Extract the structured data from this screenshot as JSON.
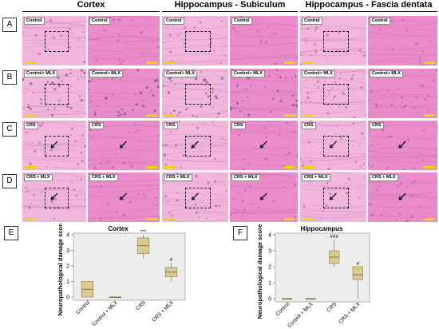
{
  "columns": [
    "Cortex",
    "Hippocampus - Subiculum",
    "Hippocampus - Fascia dentata"
  ],
  "rows": [
    {
      "label": "A",
      "tag": "Control"
    },
    {
      "label": "B",
      "tag": "Control+ MLX"
    },
    {
      "label": "C",
      "tag": "CRS"
    },
    {
      "label": "D",
      "tag": "CRS + MLX"
    }
  ],
  "tissue_colors": {
    "base": "#f2b6dc",
    "mid": "#e98cc9",
    "dark": "#b95aa4",
    "nuclei_blue": "#5a4a9a"
  },
  "chart_data": [
    {
      "panel": "E",
      "type": "box",
      "title": "Cortex",
      "ylabel": "Neuropathological damage score",
      "ylim": [
        0,
        4
      ],
      "yticks": [
        0,
        1,
        2,
        3,
        4
      ],
      "categories": [
        "Control",
        "Control + MLX",
        "CRS",
        "CRS + MLX"
      ],
      "boxes": [
        {
          "min": 0.0,
          "q1": 0.0,
          "median": 0.5,
          "q3": 1.0,
          "max": 1.0
        },
        {
          "min": 0.0,
          "q1": 0.0,
          "median": 0.0,
          "q3": 0.0,
          "max": 0.0
        },
        {
          "min": 2.5,
          "q1": 2.8,
          "median": 3.3,
          "q3": 3.8,
          "max": 4.0
        },
        {
          "min": 1.0,
          "q1": 1.3,
          "median": 1.6,
          "q3": 1.9,
          "max": 2.2
        }
      ],
      "annotations": [
        "",
        "",
        "***",
        "#"
      ],
      "box_color": "#d9cb93"
    },
    {
      "panel": "F",
      "type": "box",
      "title": "Hippocampus",
      "ylabel": "Neuropathological damage score",
      "ylim": [
        0,
        4
      ],
      "yticks": [
        0,
        1,
        2,
        3,
        4
      ],
      "categories": [
        "Control",
        "Control + MLX",
        "CRS",
        "CRS + MLX"
      ],
      "boxes": [
        {
          "min": 0.0,
          "q1": 0.0,
          "median": 0.0,
          "q3": 0.0,
          "max": 0.0
        },
        {
          "min": 0.0,
          "q1": 0.0,
          "median": 0.0,
          "q3": 0.0,
          "max": 0.0
        },
        {
          "min": 2.0,
          "q1": 2.2,
          "median": 2.6,
          "q3": 3.0,
          "max": 3.7
        },
        {
          "min": 0.0,
          "q1": 1.2,
          "median": 1.5,
          "q3": 2.0,
          "max": 2.0
        }
      ],
      "annotations": [
        "",
        "",
        "###",
        "#"
      ],
      "box_color": "#d9cb93"
    }
  ]
}
